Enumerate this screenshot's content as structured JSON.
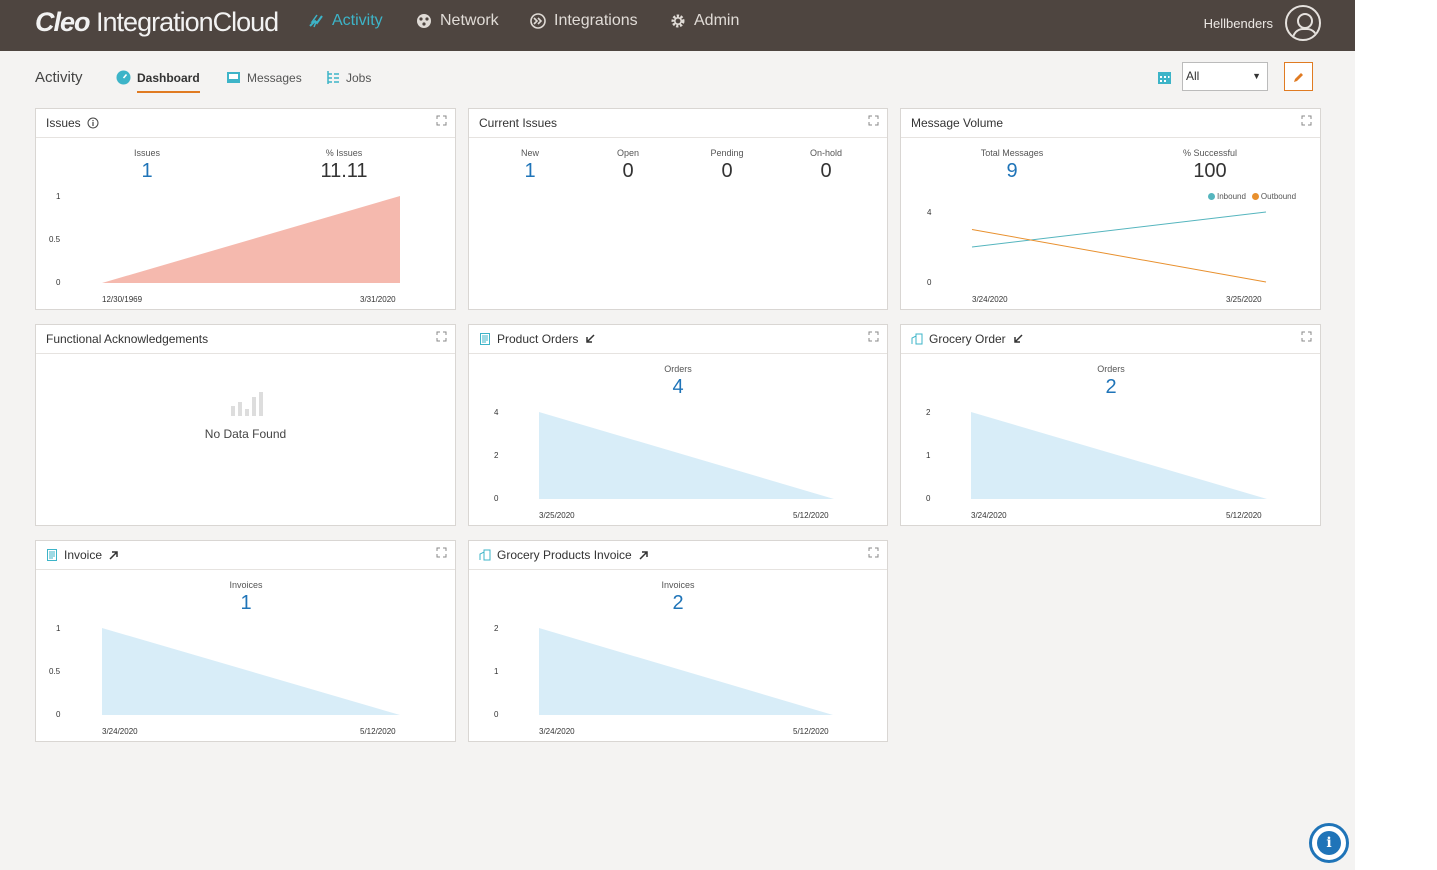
{
  "brand": {
    "bold": "Cleo",
    "rest": "IntegrationCloud"
  },
  "nav": [
    {
      "label": "Activity",
      "active": true,
      "icon": "activity-icon"
    },
    {
      "label": "Network",
      "active": false,
      "icon": "network-icon"
    },
    {
      "label": "Integrations",
      "active": false,
      "icon": "integrations-icon"
    },
    {
      "label": "Admin",
      "active": false,
      "icon": "gear-icon"
    }
  ],
  "user": {
    "name": "Hellbenders"
  },
  "subbar": {
    "title": "Activity",
    "tabs": [
      {
        "label": "Dashboard",
        "active": true
      },
      {
        "label": "Messages",
        "active": false
      },
      {
        "label": "Jobs",
        "active": false
      }
    ],
    "filter": {
      "value": "All"
    }
  },
  "colors": {
    "accent": "#e07b22",
    "link": "#1f74b8",
    "teal": "#3db4c8",
    "issuesFill": "#f5b9ae",
    "areaFill": "#d8edf8",
    "inbound": "#55b5be",
    "outbound": "#e8902e"
  },
  "panels": {
    "issues": {
      "title": "Issues",
      "metrics": [
        {
          "label": "Issues",
          "value": "1"
        },
        {
          "label": "% Issues",
          "value": "11.11"
        }
      ],
      "chart": {
        "yticks": [
          "1",
          "0.5",
          "0"
        ],
        "xstart": "12/30/1969",
        "xend": "3/31/2020"
      }
    },
    "current": {
      "title": "Current Issues",
      "metrics": [
        {
          "label": "New",
          "value": "1"
        },
        {
          "label": "Open",
          "value": "0"
        },
        {
          "label": "Pending",
          "value": "0"
        },
        {
          "label": "On-hold",
          "value": "0"
        }
      ]
    },
    "volume": {
      "title": "Message Volume",
      "metrics": [
        {
          "label": "Total Messages",
          "value": "9"
        },
        {
          "label": "% Successful",
          "value": "100"
        }
      ],
      "legend": [
        "Inbound",
        "Outbound"
      ],
      "chart": {
        "yticks": [
          "4",
          "0"
        ],
        "xstart": "3/24/2020",
        "xend": "3/25/2020"
      }
    },
    "fa": {
      "title": "Functional Acknowledgements",
      "empty": "No Data Found"
    },
    "product": {
      "title": "Product Orders",
      "metrics": [
        {
          "label": "Orders",
          "value": "4"
        }
      ],
      "chart": {
        "yticks": [
          "4",
          "2",
          "0"
        ],
        "xstart": "3/25/2020",
        "xend": "5/12/2020"
      }
    },
    "grocery": {
      "title": "Grocery Order",
      "metrics": [
        {
          "label": "Orders",
          "value": "2"
        }
      ],
      "chart": {
        "yticks": [
          "2",
          "1",
          "0"
        ],
        "xstart": "3/24/2020",
        "xend": "5/12/2020"
      }
    },
    "invoice": {
      "title": "Invoice",
      "metrics": [
        {
          "label": "Invoices",
          "value": "1"
        }
      ],
      "chart": {
        "yticks": [
          "1",
          "0.5",
          "0"
        ],
        "xstart": "3/24/2020",
        "xend": "5/12/2020"
      }
    },
    "gpi": {
      "title": "Grocery Products Invoice",
      "metrics": [
        {
          "label": "Invoices",
          "value": "2"
        }
      ],
      "chart": {
        "yticks": [
          "2",
          "1",
          "0"
        ],
        "xstart": "3/24/2020",
        "xend": "5/12/2020"
      }
    }
  },
  "chart_data": [
    {
      "type": "area",
      "title": "Issues",
      "x": [
        "12/30/1969",
        "3/31/2020"
      ],
      "series": [
        {
          "values": [
            0,
            1
          ]
        }
      ],
      "ylim": [
        0,
        1
      ]
    },
    {
      "type": "line",
      "title": "Message Volume",
      "x": [
        "3/24/2020",
        "3/25/2020"
      ],
      "series": [
        {
          "name": "Inbound",
          "values": [
            2,
            4
          ]
        },
        {
          "name": "Outbound",
          "values": [
            3,
            0
          ]
        }
      ],
      "ylim": [
        0,
        4
      ],
      "legend": "top-right"
    },
    {
      "type": "area",
      "title": "Product Orders",
      "x": [
        "3/25/2020",
        "5/12/2020"
      ],
      "series": [
        {
          "values": [
            4,
            0
          ]
        }
      ],
      "ylim": [
        0,
        4
      ]
    },
    {
      "type": "area",
      "title": "Grocery Order",
      "x": [
        "3/24/2020",
        "5/12/2020"
      ],
      "series": [
        {
          "values": [
            2,
            0
          ]
        }
      ],
      "ylim": [
        0,
        2
      ]
    },
    {
      "type": "area",
      "title": "Invoice",
      "x": [
        "3/24/2020",
        "5/12/2020"
      ],
      "series": [
        {
          "values": [
            1,
            0
          ]
        }
      ],
      "ylim": [
        0,
        1
      ]
    },
    {
      "type": "area",
      "title": "Grocery Products Invoice",
      "x": [
        "3/24/2020",
        "5/12/2020"
      ],
      "series": [
        {
          "values": [
            2,
            0
          ]
        }
      ],
      "ylim": [
        0,
        2
      ]
    }
  ]
}
